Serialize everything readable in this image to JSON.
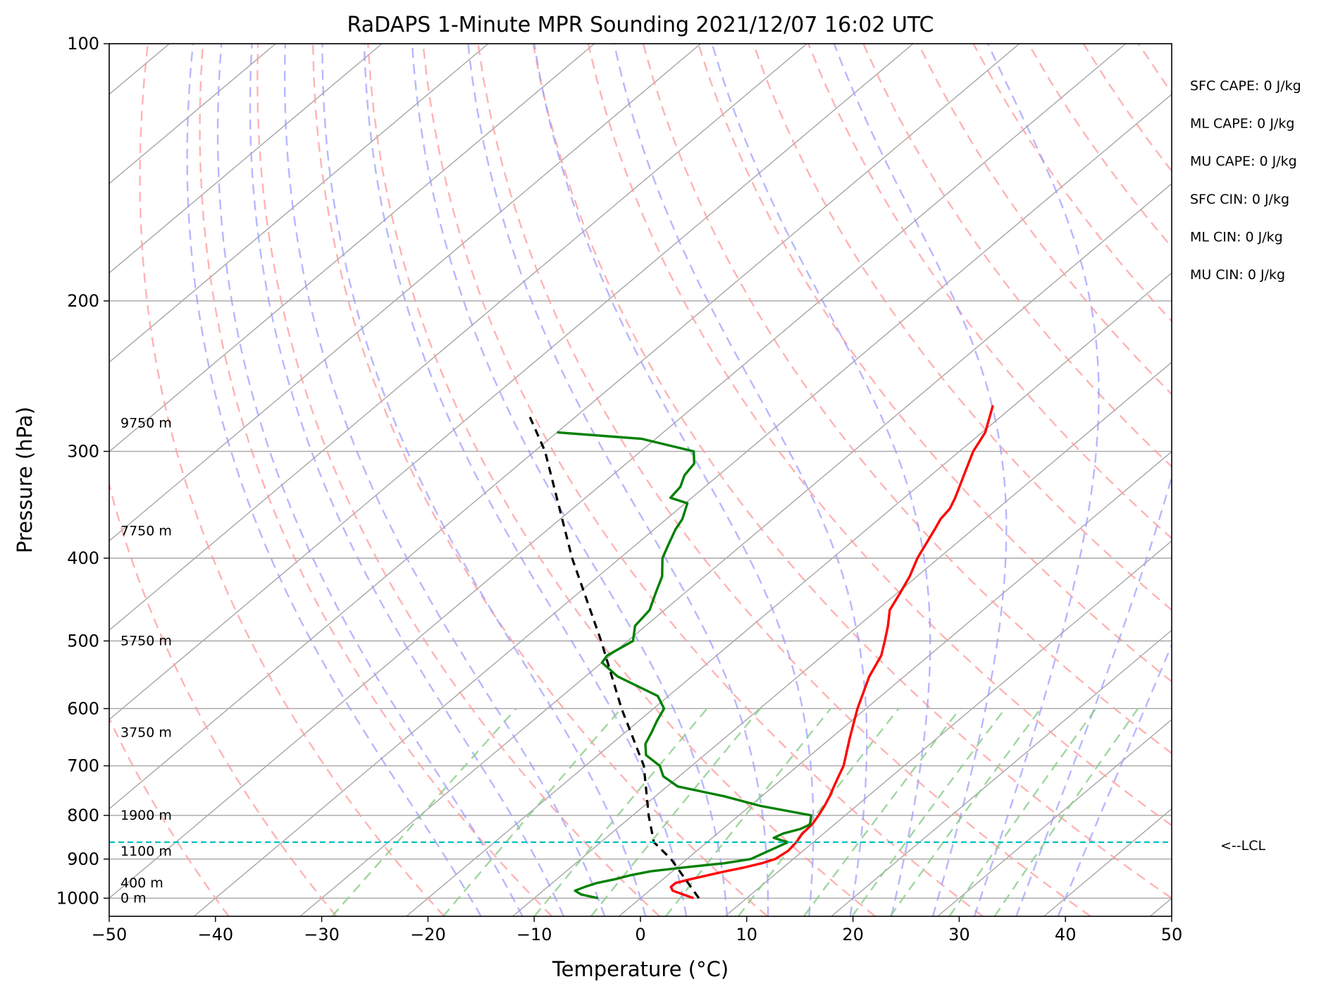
{
  "chart_data": {
    "type": "line",
    "title": "RaDAPS 1-Minute MPR Sounding 2021/12/07 16:02 UTC",
    "xlabel": "Temperature (°C)",
    "ylabel": "Pressure (hPa)",
    "xlim": [
      -50,
      50
    ],
    "ylim": [
      1050,
      100
    ],
    "y_scale": "log",
    "skew": "skew-T (isotherms slanted)",
    "x_ticks": [
      -50,
      -40,
      -30,
      -20,
      -10,
      0,
      10,
      20,
      30,
      40,
      50
    ],
    "x_tick_labels": [
      "−50",
      "−40",
      "−30",
      "−20",
      "−10",
      "0",
      "10",
      "20",
      "30",
      "40",
      "50"
    ],
    "y_ticks": [
      100,
      200,
      300,
      400,
      500,
      600,
      700,
      800,
      900,
      1000
    ],
    "y_tick_labels": [
      "100",
      "200",
      "300",
      "400",
      "500",
      "600",
      "700",
      "800",
      "900",
      "1000"
    ],
    "grid": true,
    "series": [
      {
        "color": "#ff0000",
        "p": [
          1000,
          990,
          980,
          970,
          960,
          950,
          940,
          930,
          920,
          910,
          900,
          880,
          860,
          840,
          820,
          800,
          780,
          760,
          740,
          720,
          700,
          650,
          600,
          550,
          520,
          500,
          480,
          460,
          440,
          420,
          400,
          370,
          360,
          350,
          340,
          320,
          300,
          285,
          265
        ],
        "t": [
          5.0,
          3.6,
          2.2,
          1.6,
          1.6,
          2.6,
          3.8,
          5.0,
          6.4,
          7.5,
          8.3,
          8.6,
          8.4,
          8.0,
          7.9,
          7.5,
          7.0,
          6.4,
          5.7,
          5.0,
          4.3,
          1.8,
          -0.8,
          -3.3,
          -4.5,
          -5.8,
          -7.2,
          -8.8,
          -9.7,
          -10.7,
          -12.0,
          -13.6,
          -14.2,
          -14.5,
          -15.2,
          -16.9,
          -18.7,
          -19.7,
          -22.0
        ]
      },
      {
        "color": "#008000",
        "p": [
          1000,
          990,
          980,
          970,
          960,
          950,
          940,
          930,
          920,
          910,
          900,
          880,
          860,
          850,
          840,
          830,
          820,
          800,
          780,
          760,
          740,
          720,
          700,
          680,
          660,
          640,
          620,
          600,
          580,
          550,
          530,
          520,
          500,
          480,
          460,
          440,
          420,
          400,
          385,
          370,
          360,
          345,
          340,
          330,
          320,
          310,
          300,
          290,
          285
        ],
        "t": [
          -4.0,
          -6.0,
          -7.0,
          -6.5,
          -5.8,
          -4.5,
          -3.5,
          -2.0,
          0.8,
          4.0,
          6.0,
          6.8,
          7.6,
          5.8,
          6.2,
          7.3,
          7.7,
          6.8,
          1.0,
          -3.5,
          -9.0,
          -11.5,
          -13.0,
          -15.5,
          -16.8,
          -17.5,
          -18.3,
          -19.0,
          -21.0,
          -27.0,
          -30.0,
          -30.3,
          -29.5,
          -31.0,
          -31.4,
          -32.7,
          -34.0,
          -36.0,
          -37.0,
          -38.0,
          -38.5,
          -39.8,
          -42.0,
          -42.3,
          -43.2,
          -43.6,
          -45.0,
          -51.3,
          -60.0
        ]
      },
      {
        "color": "#000000",
        "dash": "dashed",
        "p": [
          1000,
          900,
          860,
          800,
          700,
          600,
          500,
          400,
          300,
          270
        ],
        "t": [
          5.5,
          -1.5,
          -5.0,
          -8.5,
          -14.5,
          -23.0,
          -32.5,
          -44.5,
          -59.0,
          -65.0
        ]
      }
    ],
    "lcl": {
      "p": 860,
      "label": "<--LCL"
    },
    "height_labels": [
      {
        "p": 1000,
        "label": "0 m"
      },
      {
        "p": 960,
        "label": "400 m"
      },
      {
        "p": 882,
        "label": "1100 m"
      },
      {
        "p": 800,
        "label": "1900 m"
      },
      {
        "p": 640,
        "label": "3750 m"
      },
      {
        "p": 500,
        "label": "5750 m"
      },
      {
        "p": 372,
        "label": "7750 m"
      },
      {
        "p": 278,
        "label": "9750 m"
      }
    ],
    "annotations": [
      "SFC CAPE: 0 J/kg",
      "ML CAPE: 0 J/kg",
      "MU CAPE: 0 J/kg",
      "SFC CIN: 0 J/kg",
      "ML CIN: 0 J/kg",
      "MU CIN: 0 J/kg"
    ],
    "background_colors": {
      "dry_adiabat": "#ff9999",
      "moist_adiabat": "#9999ff",
      "mixing_ratio": "#88cc88",
      "grid": "#a6a6a6",
      "lcl": "#00bfbf"
    }
  }
}
